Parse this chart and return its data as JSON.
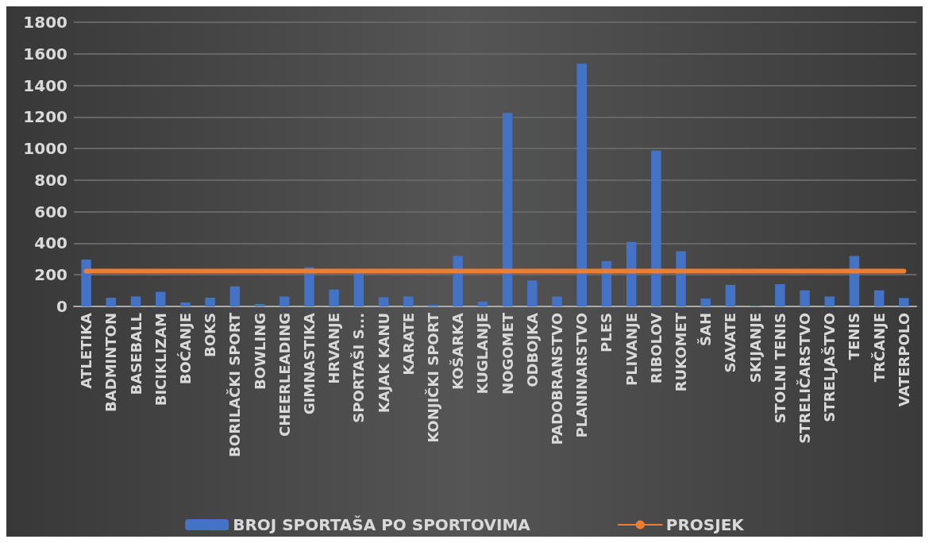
{
  "chart_data": {
    "type": "bar",
    "categories": [
      "ATLETIKA",
      "BADMINTON",
      "BASEBALL",
      "BICIKLIZAM",
      "BOĆANJE",
      "BOKS",
      "BORILAČKI SPORT",
      "BOWLING",
      "CHEERLEADING",
      "GIMNASTIKA",
      "HRVANJE",
      "SPORTAŠI S...",
      "KAJAK KANU",
      "KARATE",
      "KONJIČKI SPORT",
      "KOŠARKA",
      "KUGLANJE",
      "NOGOMET",
      "ODBOJKA",
      "PADOBRANSTVO",
      "PLANINARSTVO",
      "PLES",
      "PLIVANJE",
      "RIBOLOV",
      "RUKOMET",
      "ŠAH",
      "SAVATE",
      "SKIJANJE",
      "STOLNI TENIS",
      "STRELIČARSTVO",
      "STRELJAŠTVO",
      "TENIS",
      "TRČANJE",
      "VATERPOLO"
    ],
    "series": [
      {
        "name": "BROJ SPORTAŠA PO SPORTOVIMA",
        "color": "#4472c4",
        "values": [
          297,
          55,
          63,
          92,
          25,
          55,
          127,
          15,
          63,
          248,
          107,
          220,
          58,
          63,
          10,
          320,
          30,
          1225,
          165,
          63,
          1537,
          287,
          408,
          987,
          350,
          50,
          136,
          3,
          141,
          102,
          63,
          320,
          102,
          53
        ]
      },
      {
        "name": "PROSJEK",
        "type": "line",
        "color": "#ed7d31",
        "values": [
          224,
          224,
          224,
          224,
          224,
          224,
          224,
          224,
          224,
          224,
          224,
          224,
          224,
          224,
          224,
          224,
          224,
          224,
          224,
          224,
          224,
          224,
          224,
          224,
          224,
          224,
          224,
          224,
          224,
          224,
          224,
          224,
          224,
          224
        ]
      }
    ],
    "ylim": [
      0,
      1800
    ],
    "yticks": [
      0,
      200,
      400,
      600,
      800,
      1000,
      1200,
      1400,
      1600,
      1800
    ],
    "grid": "y",
    "legend": "bottom",
    "marker": "none"
  }
}
